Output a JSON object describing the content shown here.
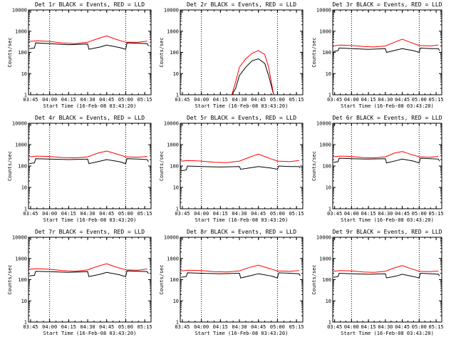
{
  "chart_data": [
    {
      "type": "line",
      "title": "Det 1r BLACK = Events, RED = LLD",
      "xlabel": "Start Time (16-Feb-08 03:43:20)",
      "ylabel": "Counts/sec",
      "yscale": "log",
      "ylim": [
        1,
        10000
      ],
      "x_ticks": [
        "03:45",
        "04:00",
        "04:15",
        "04:30",
        "04:45",
        "05:00",
        "05:15"
      ],
      "y_ticks": [
        "1",
        "10",
        "100",
        "1000",
        "10000"
      ],
      "dotted_at": [
        "04:00",
        "05:00"
      ],
      "series": [
        {
          "name": "Events",
          "color": "#000000",
          "x": [
            "03:44",
            "03:48",
            "03:49",
            "04:00",
            "04:15",
            "04:30",
            "04:31",
            "04:40",
            "04:45",
            "04:55",
            "05:00",
            "05:01",
            "05:10",
            "05:17",
            "05:18"
          ],
          "values": [
            150,
            160,
            280,
            260,
            230,
            250,
            140,
            180,
            220,
            170,
            140,
            280,
            270,
            260,
            200
          ]
        },
        {
          "name": "LLD",
          "color": "#ff0000",
          "x": [
            "03:44",
            "03:50",
            "04:00",
            "04:10",
            "04:20",
            "04:30",
            "04:38",
            "04:45",
            "04:52",
            "05:00",
            "05:10",
            "05:17"
          ],
          "values": [
            330,
            350,
            330,
            280,
            260,
            300,
            450,
            600,
            420,
            300,
            300,
            340
          ]
        }
      ]
    },
    {
      "type": "line",
      "title": "Det 2r BLACK = Events, RED = LLD",
      "xlabel": "Start Time (16-Feb-08 03:43:20)",
      "ylabel": "Counts/sec",
      "yscale": "log",
      "ylim": [
        1,
        10000
      ],
      "x_ticks": [
        "03:45",
        "04:00",
        "04:15",
        "04:30",
        "04:45",
        "05:00",
        "05:15"
      ],
      "y_ticks": [
        "1",
        "10",
        "100",
        "1000",
        "10000"
      ],
      "dotted_at": [
        "04:00",
        "05:00"
      ],
      "series": [
        {
          "name": "Events",
          "color": "#000000",
          "x": [
            "04:24",
            "04:27",
            "04:30",
            "04:35",
            "04:40",
            "04:45",
            "04:50",
            "04:53",
            "04:57"
          ],
          "values": [
            1,
            2,
            8,
            20,
            40,
            50,
            30,
            8,
            1
          ]
        },
        {
          "name": "LLD",
          "color": "#ff0000",
          "x": [
            "04:24",
            "04:27",
            "04:30",
            "04:35",
            "04:40",
            "04:45",
            "04:50",
            "04:53",
            "04:57"
          ],
          "values": [
            1,
            4,
            20,
            50,
            90,
            120,
            80,
            20,
            1
          ]
        }
      ]
    },
    {
      "type": "line",
      "title": "Det 3r BLACK = Events, RED = LLD",
      "xlabel": "Start Time (16-Feb-08 03:43:20)",
      "ylabel": "Counts/sec",
      "yscale": "log",
      "ylim": [
        1,
        10000
      ],
      "x_ticks": [
        "03:45",
        "04:00",
        "04:15",
        "04:30",
        "04:45",
        "05:00",
        "05:15"
      ],
      "y_ticks": [
        "1",
        "10",
        "100",
        "1000",
        "10000"
      ],
      "dotted_at": [
        "04:00",
        "05:00"
      ],
      "series": [
        {
          "name": "Events",
          "color": "#000000",
          "x": [
            "03:44",
            "03:48",
            "03:49",
            "04:00",
            "04:15",
            "04:30",
            "04:31",
            "04:40",
            "04:45",
            "04:55",
            "05:00",
            "05:01",
            "05:10",
            "05:17",
            "05:18"
          ],
          "values": [
            110,
            120,
            160,
            150,
            140,
            150,
            100,
            130,
            150,
            120,
            100,
            160,
            150,
            150,
            120
          ]
        },
        {
          "name": "LLD",
          "color": "#ff0000",
          "x": [
            "03:44",
            "03:50",
            "04:00",
            "04:10",
            "04:20",
            "04:30",
            "04:38",
            "04:45",
            "04:52",
            "05:00",
            "05:10",
            "05:17"
          ],
          "values": [
            200,
            220,
            210,
            190,
            180,
            200,
            300,
            420,
            300,
            210,
            200,
            220
          ]
        }
      ]
    },
    {
      "type": "line",
      "title": "Det 4r BLACK = Events, RED = LLD",
      "xlabel": "Start Time (16-Feb-08 03:43:20)",
      "ylabel": "Counts/sec",
      "yscale": "log",
      "ylim": [
        1,
        10000
      ],
      "x_ticks": [
        "03:45",
        "04:00",
        "04:15",
        "04:30",
        "04:45",
        "05:00",
        "05:15"
      ],
      "y_ticks": [
        "1",
        "10",
        "100",
        "1000",
        "10000"
      ],
      "dotted_at": [
        "04:00",
        "05:00"
      ],
      "series": [
        {
          "name": "Events",
          "color": "#000000",
          "x": [
            "03:44",
            "03:48",
            "03:49",
            "04:00",
            "04:15",
            "04:30",
            "04:31",
            "04:40",
            "04:45",
            "04:55",
            "05:00",
            "05:01",
            "05:10",
            "05:17",
            "05:18"
          ],
          "values": [
            130,
            140,
            220,
            210,
            200,
            210,
            130,
            170,
            200,
            160,
            130,
            220,
            210,
            200,
            160
          ]
        },
        {
          "name": "LLD",
          "color": "#ff0000",
          "x": [
            "03:44",
            "03:50",
            "04:00",
            "04:10",
            "04:20",
            "04:30",
            "04:38",
            "04:45",
            "04:52",
            "05:00",
            "05:10",
            "05:17"
          ],
          "values": [
            270,
            290,
            280,
            250,
            240,
            270,
            400,
            500,
            380,
            270,
            260,
            280
          ]
        }
      ]
    },
    {
      "type": "line",
      "title": "Det 5r BLACK = Events, RED = LLD",
      "xlabel": "Start Time (16-Feb-08 03:43:20)",
      "ylabel": "Counts/sec",
      "yscale": "log",
      "ylim": [
        1,
        10000
      ],
      "x_ticks": [
        "03:45",
        "04:00",
        "04:15",
        "04:30",
        "04:45",
        "05:00",
        "05:15"
      ],
      "y_ticks": [
        "1",
        "10",
        "100",
        "1000",
        "10000"
      ],
      "dotted_at": [
        "04:00",
        "05:00"
      ],
      "series": [
        {
          "name": "Events",
          "color": "#000000",
          "x": [
            "03:44",
            "03:48",
            "03:49",
            "04:00",
            "04:15",
            "04:30",
            "04:31",
            "04:40",
            "04:45",
            "04:55",
            "05:00",
            "05:01",
            "05:10",
            "05:17",
            "05:18"
          ],
          "values": [
            60,
            65,
            100,
            95,
            90,
            95,
            70,
            85,
            95,
            80,
            70,
            100,
            95,
            95,
            80
          ]
        },
        {
          "name": "LLD",
          "color": "#ff0000",
          "x": [
            "03:44",
            "03:50",
            "04:00",
            "04:10",
            "04:20",
            "04:30",
            "04:38",
            "04:45",
            "04:52",
            "05:00",
            "05:10",
            "05:17"
          ],
          "values": [
            170,
            180,
            170,
            150,
            145,
            170,
            260,
            360,
            250,
            170,
            160,
            180
          ]
        }
      ]
    },
    {
      "type": "line",
      "title": "Det 6r BLACK = Events, RED = LLD",
      "xlabel": "Start Time (16-Feb-08 03:43:20)",
      "ylabel": "Counts/sec",
      "yscale": "log",
      "ylim": [
        1,
        10000
      ],
      "x_ticks": [
        "03:45",
        "04:00",
        "04:15",
        "04:30",
        "04:45",
        "05:00",
        "05:15"
      ],
      "y_ticks": [
        "1",
        "10",
        "100",
        "1000",
        "10000"
      ],
      "dotted_at": [
        "04:00",
        "05:00"
      ],
      "series": [
        {
          "name": "Events",
          "color": "#000000",
          "x": [
            "03:44",
            "03:48",
            "03:49",
            "04:00",
            "04:15",
            "04:30",
            "04:31",
            "04:40",
            "04:45",
            "04:55",
            "05:00",
            "05:01",
            "05:10",
            "05:17",
            "05:18"
          ],
          "values": [
            150,
            160,
            230,
            220,
            210,
            220,
            140,
            180,
            210,
            170,
            140,
            230,
            220,
            210,
            170
          ]
        },
        {
          "name": "LLD",
          "color": "#ff0000",
          "x": [
            "03:44",
            "03:50",
            "04:00",
            "04:10",
            "04:20",
            "04:30",
            "04:38",
            "04:45",
            "04:52",
            "05:00",
            "05:10",
            "05:17"
          ],
          "values": [
            270,
            290,
            280,
            250,
            240,
            270,
            400,
            480,
            360,
            270,
            260,
            280
          ]
        }
      ]
    },
    {
      "type": "line",
      "title": "Det 7r BLACK = Events, RED = LLD",
      "xlabel": "Start Time (16-Feb-08 03:43:20)",
      "ylabel": "Counts/sec",
      "yscale": "log",
      "ylim": [
        1,
        10000
      ],
      "x_ticks": [
        "03:45",
        "04:00",
        "04:15",
        "04:30",
        "04:45",
        "05:00",
        "05:15"
      ],
      "y_ticks": [
        "1",
        "10",
        "100",
        "1000",
        "10000"
      ],
      "dotted_at": [
        "04:00",
        "05:00"
      ],
      "series": [
        {
          "name": "Events",
          "color": "#000000",
          "x": [
            "03:44",
            "03:48",
            "03:49",
            "04:00",
            "04:15",
            "04:30",
            "04:31",
            "04:40",
            "04:45",
            "04:55",
            "05:00",
            "05:01",
            "05:10",
            "05:17",
            "05:18"
          ],
          "values": [
            150,
            160,
            250,
            240,
            220,
            240,
            140,
            180,
            220,
            170,
            140,
            260,
            250,
            240,
            190
          ]
        },
        {
          "name": "LLD",
          "color": "#ff0000",
          "x": [
            "03:44",
            "03:50",
            "04:00",
            "04:10",
            "04:20",
            "04:30",
            "04:38",
            "04:45",
            "04:52",
            "05:00",
            "05:10",
            "05:17"
          ],
          "values": [
            310,
            330,
            310,
            270,
            250,
            290,
            430,
            560,
            400,
            290,
            280,
            320
          ]
        }
      ]
    },
    {
      "type": "line",
      "title": "Det 8r BLACK = Events, RED = LLD",
      "xlabel": "Start Time (16-Feb-08 03:43:20)",
      "ylabel": "Counts/sec",
      "yscale": "log",
      "ylim": [
        1,
        10000
      ],
      "x_ticks": [
        "03:45",
        "04:00",
        "04:15",
        "04:30",
        "04:45",
        "05:00",
        "05:15"
      ],
      "y_ticks": [
        "1",
        "10",
        "100",
        "1000",
        "10000"
      ],
      "dotted_at": [
        "04:00",
        "05:00"
      ],
      "series": [
        {
          "name": "Events",
          "color": "#000000",
          "x": [
            "03:44",
            "03:48",
            "03:49",
            "04:00",
            "04:15",
            "04:30",
            "04:31",
            "04:40",
            "04:45",
            "04:55",
            "05:00",
            "05:01",
            "05:10",
            "05:17",
            "05:18"
          ],
          "values": [
            130,
            140,
            210,
            200,
            190,
            200,
            120,
            160,
            190,
            150,
            120,
            210,
            200,
            190,
            150
          ]
        },
        {
          "name": "LLD",
          "color": "#ff0000",
          "x": [
            "03:44",
            "03:50",
            "04:00",
            "04:10",
            "04:20",
            "04:30",
            "04:38",
            "04:45",
            "04:52",
            "05:00",
            "05:10",
            "05:17"
          ],
          "values": [
            260,
            280,
            270,
            240,
            230,
            260,
            380,
            480,
            360,
            260,
            250,
            270
          ]
        }
      ]
    },
    {
      "type": "line",
      "title": "Det 9r BLACK = Events, RED = LLD",
      "xlabel": "Start Time (16-Feb-08 03:43:20)",
      "ylabel": "Counts/sec",
      "yscale": "log",
      "ylim": [
        1,
        10000
      ],
      "x_ticks": [
        "03:45",
        "04:00",
        "04:15",
        "04:30",
        "04:45",
        "05:00",
        "05:15"
      ],
      "y_ticks": [
        "1",
        "10",
        "100",
        "1000",
        "10000"
      ],
      "dotted_at": [
        "04:00",
        "05:00"
      ],
      "series": [
        {
          "name": "Events",
          "color": "#000000",
          "x": [
            "03:44",
            "03:48",
            "03:49",
            "04:00",
            "04:15",
            "04:30",
            "04:31",
            "04:40",
            "04:45",
            "04:55",
            "05:00",
            "05:01",
            "05:10",
            "05:17",
            "05:18"
          ],
          "values": [
            130,
            140,
            200,
            190,
            180,
            190,
            120,
            150,
            180,
            140,
            120,
            200,
            190,
            180,
            150
          ]
        },
        {
          "name": "LLD",
          "color": "#ff0000",
          "x": [
            "03:44",
            "03:50",
            "04:00",
            "04:10",
            "04:20",
            "04:30",
            "04:38",
            "04:45",
            "04:52",
            "05:00",
            "05:10",
            "05:17"
          ],
          "values": [
            250,
            270,
            260,
            230,
            220,
            250,
            360,
            460,
            340,
            250,
            240,
            260
          ]
        }
      ]
    }
  ]
}
